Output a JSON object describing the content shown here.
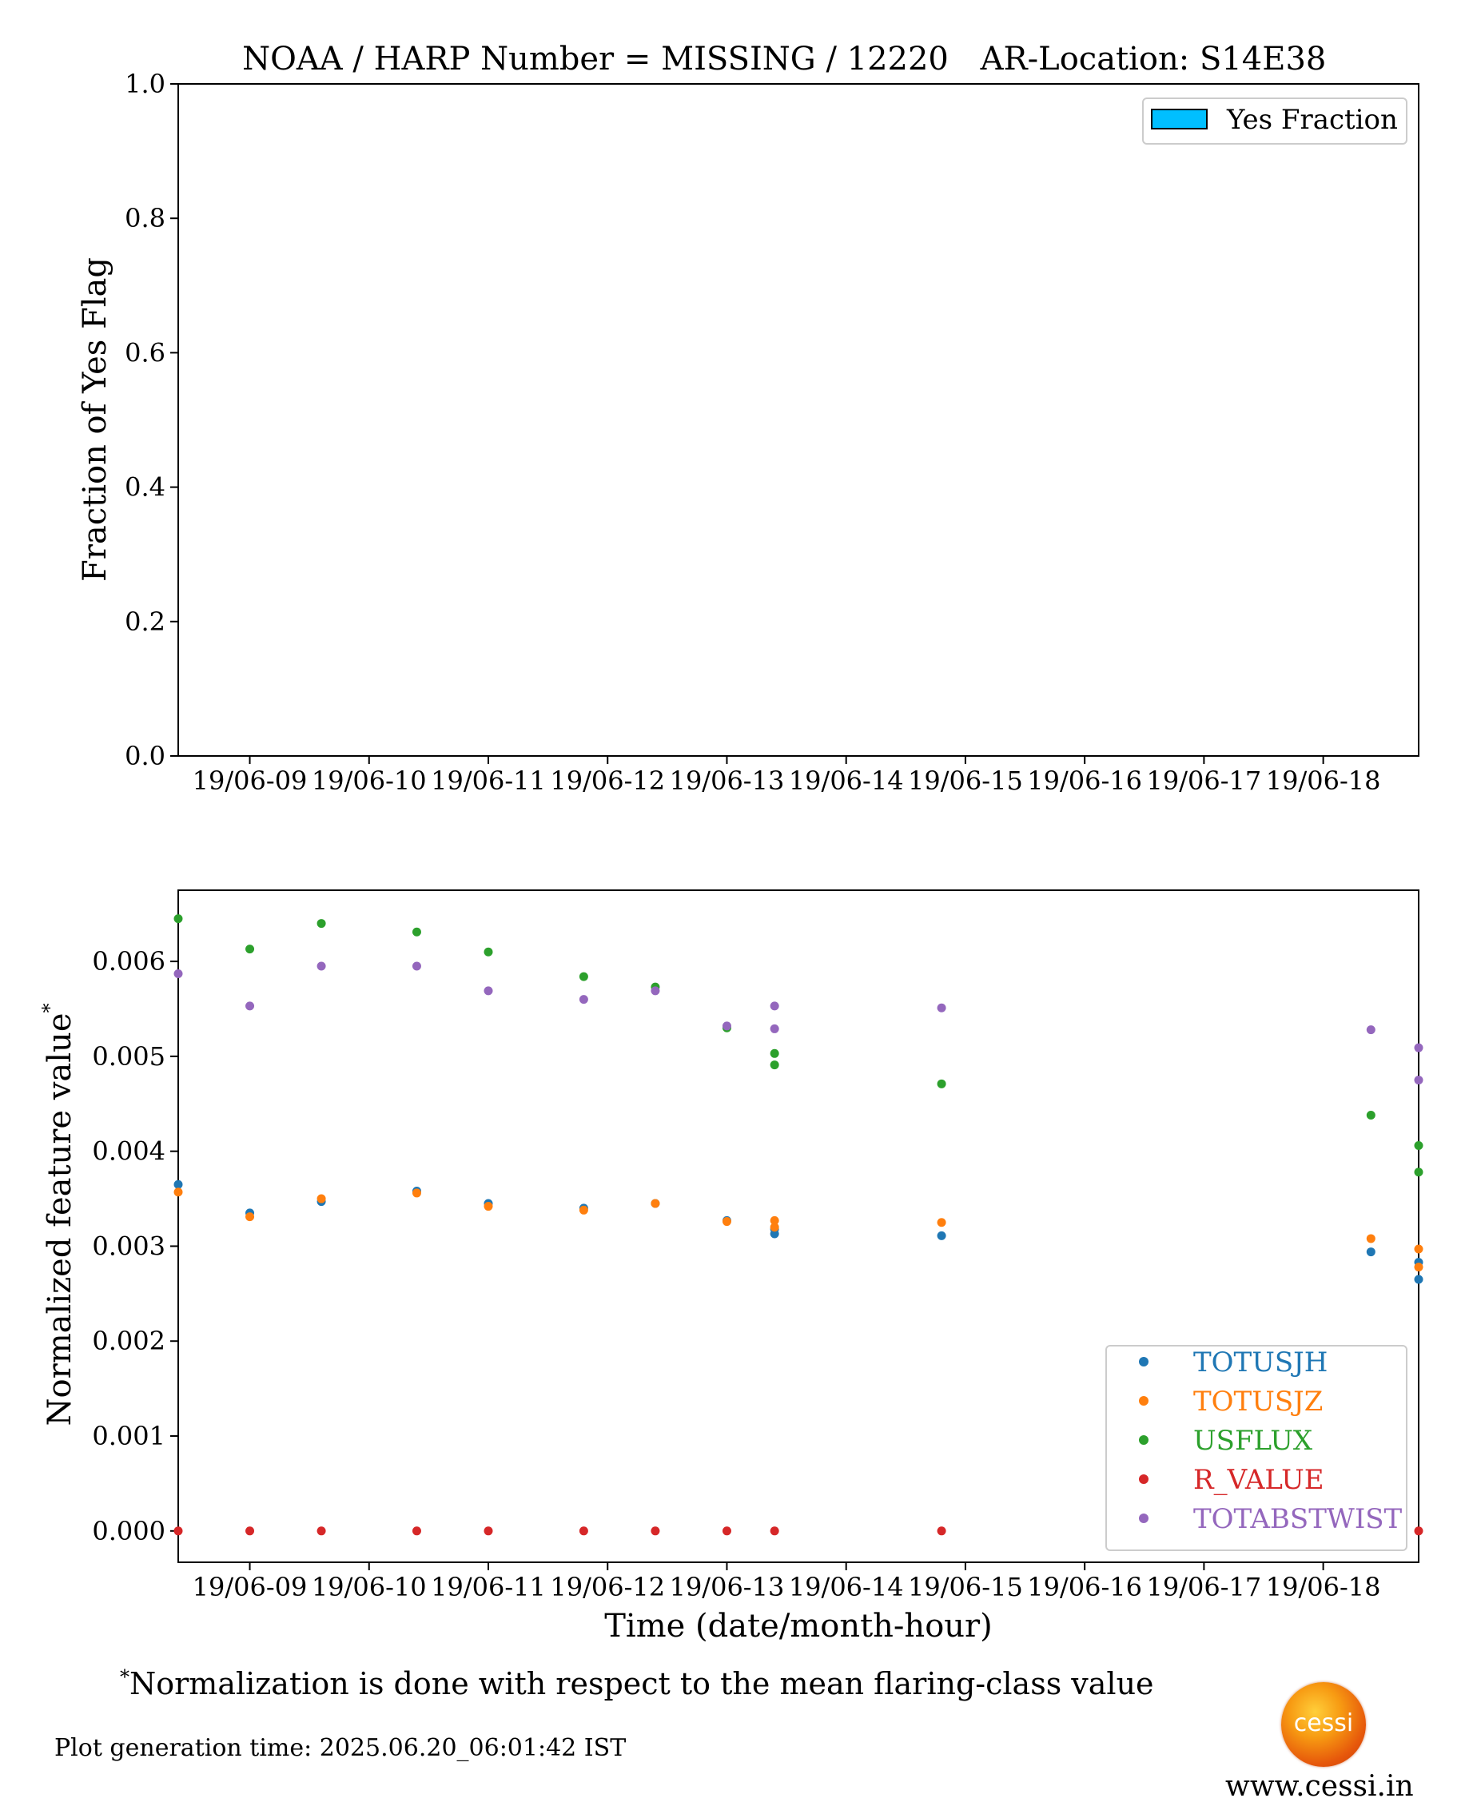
{
  "top_chart": {
    "title_left": "NOAA / HARP Number = MISSING / 12220",
    "title_right": "AR-Location: S14E38",
    "ylabel": "Fraction of Yes Flag",
    "legend_label": "Yes Fraction",
    "legend_color": "#00bfff"
  },
  "bottom_chart": {
    "ylabel": "Normalized feature value",
    "ylabel_sup": "*",
    "xlabel": "Time (date/month-hour)"
  },
  "footnote": {
    "marker": "*",
    "text": "Normalization is done with respect to the mean flaring-class value"
  },
  "generation_time": "Plot generation time: 2025.06.20_06:01:42 IST",
  "logo_text": "cessi",
  "website": "www.cessi.in",
  "chart_data": [
    {
      "type": "bar",
      "ylim": [
        0,
        1.0
      ],
      "yticks": [
        "0.0",
        "0.2",
        "0.4",
        "0.6",
        "0.8",
        "1.0"
      ],
      "ytick_values": [
        0,
        0.2,
        0.4,
        0.6,
        0.8,
        1.0
      ],
      "xlim": [
        8.4,
        18.8
      ],
      "xticks": [
        9,
        10,
        11,
        12,
        13,
        14,
        15,
        16,
        17,
        18
      ],
      "xtick_labels": [
        "19/06-09",
        "19/06-10",
        "19/06-11",
        "19/06-12",
        "19/06-13",
        "19/06-14",
        "19/06-15",
        "19/06-16",
        "19/06-17",
        "19/06-18"
      ],
      "series": [
        {
          "name": "Yes Fraction",
          "color": "#00bfff",
          "values": []
        }
      ],
      "legend": "top-right",
      "grid": false
    },
    {
      "type": "scatter",
      "ylim": [
        -0.00033,
        0.00675
      ],
      "yticks": [
        "0.000",
        "0.001",
        "0.002",
        "0.003",
        "0.004",
        "0.005",
        "0.006"
      ],
      "ytick_values": [
        0,
        0.001,
        0.002,
        0.003,
        0.004,
        0.005,
        0.006
      ],
      "xlim": [
        8.4,
        18.8
      ],
      "xticks": [
        9,
        10,
        11,
        12,
        13,
        14,
        15,
        16,
        17,
        18
      ],
      "xtick_labels": [
        "19/06-09",
        "19/06-10",
        "19/06-11",
        "19/06-12",
        "19/06-13",
        "19/06-14",
        "19/06-15",
        "19/06-16",
        "19/06-17",
        "19/06-18"
      ],
      "legend": "lower-right",
      "grid": false,
      "series": [
        {
          "name": "TOTUSJH",
          "color": "#1f77b4",
          "x": [
            8.4,
            9.0,
            9.6,
            10.4,
            11.0,
            11.8,
            12.4,
            13.0,
            13.4,
            13.4,
            14.8,
            18.4,
            18.8,
            18.8
          ],
          "y": [
            0.00365,
            0.00335,
            0.00347,
            0.00358,
            0.00345,
            0.0034,
            0.00345,
            0.00327,
            0.00313,
            0.00318,
            0.00311,
            0.00294,
            0.00283,
            0.00265
          ]
        },
        {
          "name": "TOTUSJZ",
          "color": "#ff7f0e",
          "x": [
            8.4,
            9.0,
            9.6,
            10.4,
            11.0,
            11.8,
            12.4,
            13.0,
            13.4,
            13.4,
            14.8,
            18.4,
            18.8,
            18.8
          ],
          "y": [
            0.00357,
            0.00331,
            0.0035,
            0.00356,
            0.00342,
            0.00338,
            0.00345,
            0.00326,
            0.00327,
            0.0032,
            0.00325,
            0.00308,
            0.00297,
            0.00278
          ]
        },
        {
          "name": "USFLUX",
          "color": "#2ca02c",
          "x": [
            8.4,
            9.0,
            9.6,
            10.4,
            11.0,
            11.8,
            12.4,
            13.0,
            13.4,
            13.4,
            14.8,
            18.4,
            18.8,
            18.8
          ],
          "y": [
            0.00645,
            0.00613,
            0.0064,
            0.00631,
            0.0061,
            0.00584,
            0.00573,
            0.0053,
            0.00503,
            0.00491,
            0.00471,
            0.00438,
            0.00406,
            0.00378
          ]
        },
        {
          "name": "R_VALUE",
          "color": "#d62728",
          "x": [
            8.4,
            9.0,
            9.6,
            10.4,
            11.0,
            11.8,
            12.4,
            13.0,
            13.4,
            14.8,
            18.8
          ],
          "y": [
            0,
            0,
            0,
            0,
            0,
            0,
            0,
            0,
            0,
            0,
            0
          ]
        },
        {
          "name": "TOTABSTWIST",
          "color": "#9467bd",
          "x": [
            8.4,
            9.0,
            9.6,
            10.4,
            11.0,
            11.8,
            12.4,
            13.0,
            13.4,
            13.4,
            14.8,
            18.4,
            18.8,
            18.8
          ],
          "y": [
            0.00587,
            0.00553,
            0.00595,
            0.00595,
            0.00569,
            0.0056,
            0.00569,
            0.00532,
            0.00553,
            0.00529,
            0.00551,
            0.00528,
            0.00509,
            0.00475
          ]
        }
      ]
    }
  ]
}
